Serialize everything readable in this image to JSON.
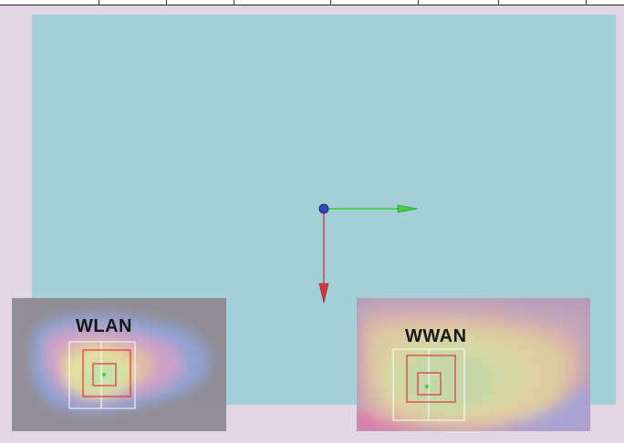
{
  "panels": {
    "wlan": {
      "title": "WLAN"
    },
    "wwan": {
      "title": "WWAN"
    }
  },
  "colors": {
    "background": "#e1d6e2",
    "viewport": "#a3cfd9",
    "panel": "#8f8a94",
    "axis_x": "#33cc33",
    "axis_y": "#cc3333",
    "origin": "#3344cc",
    "target_box": "#e03030",
    "guide_box": "#ffffff"
  },
  "icons": {
    "origin": "origin-marker-icon",
    "x_axis": "x-axis-arrow-icon",
    "y_axis": "y-axis-arrow-icon"
  }
}
